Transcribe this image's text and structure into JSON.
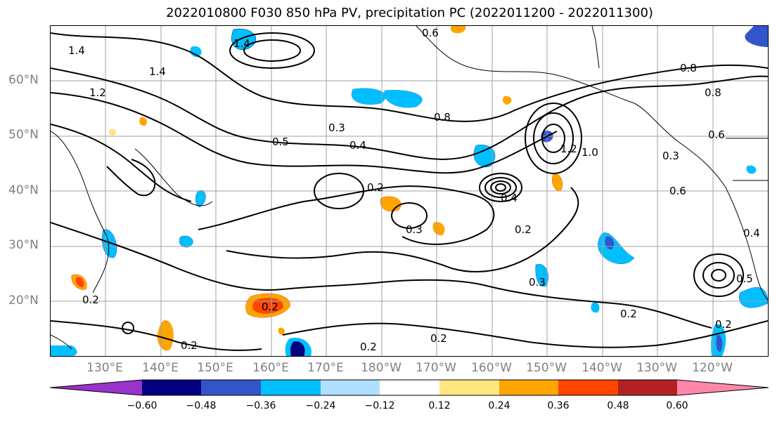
{
  "title": "2022010800 F030 850 hPa PV, precipitation PC (2022011200 - 2022011300)",
  "lat_labels": [
    "60°N",
    "50°N",
    "40°N",
    "30°N",
    "20°N"
  ],
  "lon_labels": [
    "130°E",
    "140°E",
    "150°E",
    "160°E",
    "170°E",
    "180°W",
    "170°W",
    "160°W",
    "150°W",
    "140°W",
    "130°W",
    "120°W"
  ],
  "colorbar": {
    "ticks": [
      "−0.60",
      "−0.48",
      "−0.36",
      "−0.24",
      "−0.12",
      "0.12",
      "0.24",
      "0.36",
      "0.48",
      "0.60"
    ],
    "colors": [
      "#9933cc",
      "#000080",
      "#3355cc",
      "#00bfff",
      "#b0e0ff",
      "#ffffff",
      "#ffe680",
      "#ffa500",
      "#ff4500",
      "#b22222",
      "#ff88aa"
    ]
  },
  "contour_labels": [
    "1.4",
    "1.4",
    "1.4",
    "1.2",
    "0.6",
    "0.8",
    "0.5",
    "0.3",
    "0.4",
    "0.2",
    "0.3",
    "0.2",
    "0.2",
    "0.3",
    "0.2",
    "0.2",
    "0.2",
    "0.2",
    "0.2",
    "0.5",
    "0.6",
    "0.4",
    "0.8",
    "1.0",
    "1.2",
    "0.3",
    "0.6",
    "0.8",
    "0.2",
    "0.4"
  ],
  "colors": {
    "contour": "#000000",
    "grid": "#a0a0a0",
    "coast": "#000000"
  }
}
